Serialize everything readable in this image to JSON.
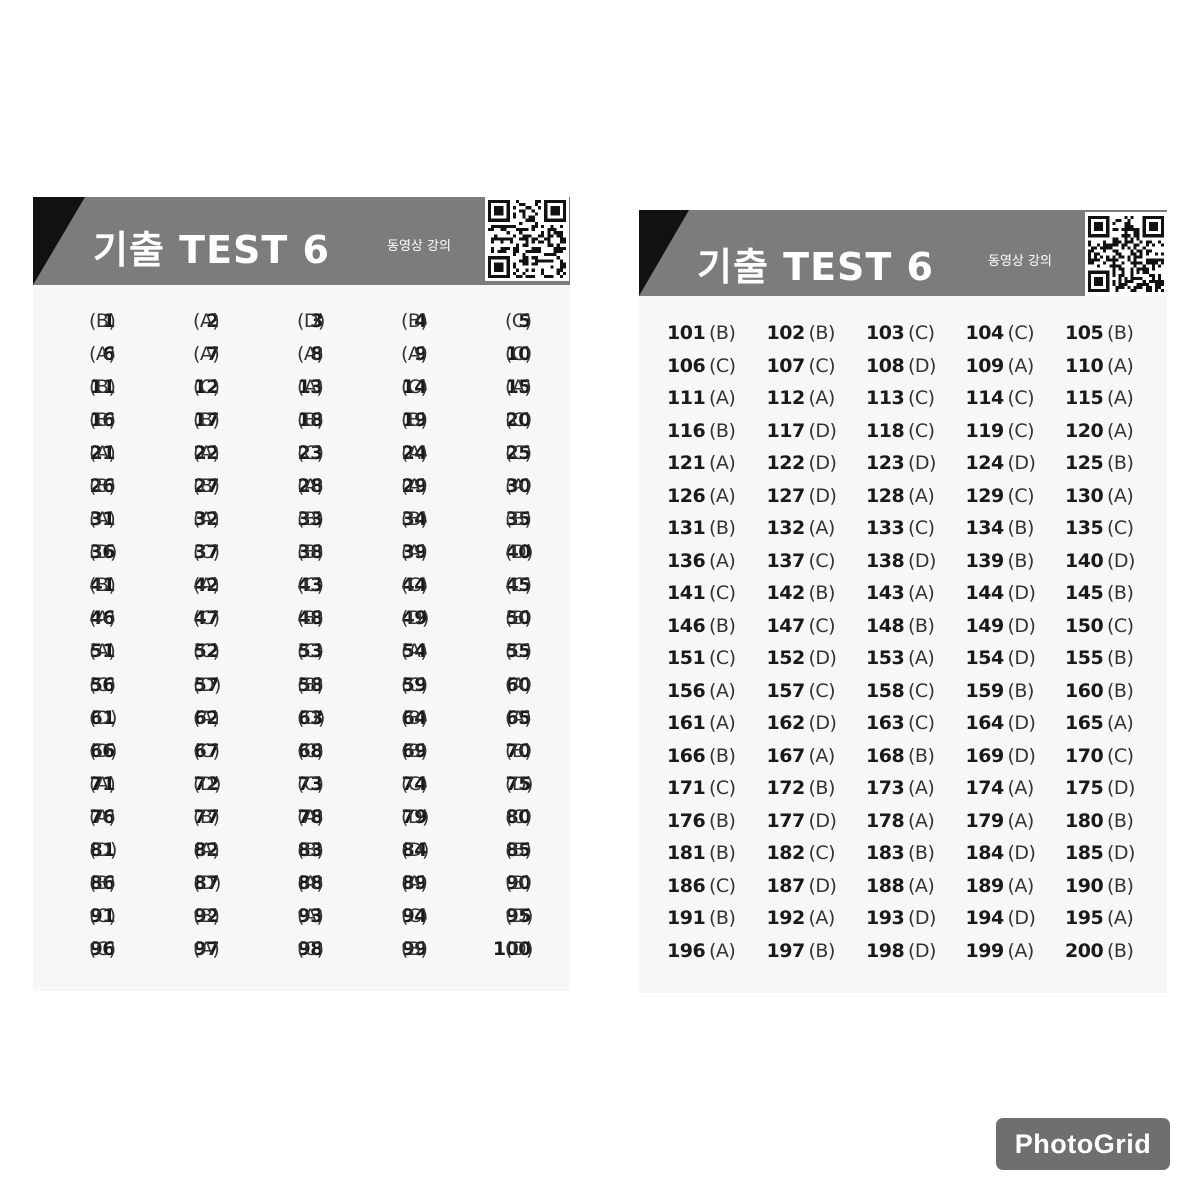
{
  "cards": [
    {
      "title": "기출 TEST 6",
      "video_label": "동영상 강의",
      "answers": [
        [
          "1",
          "(B)"
        ],
        [
          "2",
          "(A)"
        ],
        [
          "3",
          "(D)"
        ],
        [
          "4",
          "(B)"
        ],
        [
          "5",
          "(C)"
        ],
        [
          "6",
          "(A)"
        ],
        [
          "7",
          "(A)"
        ],
        [
          "8",
          "(A)"
        ],
        [
          "9",
          "(A)"
        ],
        [
          "10",
          "(C)"
        ],
        [
          "11",
          "(B)"
        ],
        [
          "12",
          "(C)"
        ],
        [
          "13",
          "(A)"
        ],
        [
          "14",
          "(C)"
        ],
        [
          "15",
          "(A)"
        ],
        [
          "16",
          "(B)"
        ],
        [
          "17",
          "(B)"
        ],
        [
          "18",
          "(B)"
        ],
        [
          "19",
          "(B)"
        ],
        [
          "20",
          "(C)"
        ],
        [
          "21",
          "(A)"
        ],
        [
          "22",
          "(A)"
        ],
        [
          "23",
          "(C)"
        ],
        [
          "24",
          "(A)"
        ],
        [
          "25",
          "(C)"
        ],
        [
          "26",
          "(B)"
        ],
        [
          "27",
          "(B)"
        ],
        [
          "28",
          "(A)"
        ],
        [
          "29",
          "(A)"
        ],
        [
          "30",
          "(A)"
        ],
        [
          "31",
          "(A)"
        ],
        [
          "32",
          "(A)"
        ],
        [
          "33",
          "(B)"
        ],
        [
          "34",
          "(B)"
        ],
        [
          "35",
          "(B)"
        ],
        [
          "36",
          "(D)"
        ],
        [
          "37",
          "(C)"
        ],
        [
          "38",
          "(B)"
        ],
        [
          "39",
          "(A)"
        ],
        [
          "40",
          "(D)"
        ],
        [
          "41",
          "(B)"
        ],
        [
          "42",
          "(A)"
        ],
        [
          "43",
          "(C)"
        ],
        [
          "44",
          "(C)"
        ],
        [
          "45",
          "(C)"
        ],
        [
          "46",
          "(A)"
        ],
        [
          "47",
          "(C)"
        ],
        [
          "48",
          "(B)"
        ],
        [
          "49",
          "(D)"
        ],
        [
          "50",
          "(B)"
        ],
        [
          "51",
          "(A)"
        ],
        [
          "52",
          "(C)"
        ],
        [
          "53",
          "(C)"
        ],
        [
          "54",
          "(A)"
        ],
        [
          "55",
          "(C)"
        ],
        [
          "56",
          "(C)"
        ],
        [
          "57",
          "(D)"
        ],
        [
          "58",
          "(B)"
        ],
        [
          "59",
          "(C)"
        ],
        [
          "60",
          "(A)"
        ],
        [
          "61",
          "(D)"
        ],
        [
          "62",
          "(A)"
        ],
        [
          "63",
          "(D)"
        ],
        [
          "64",
          "(B)"
        ],
        [
          "65",
          "(A)"
        ],
        [
          "66",
          "(D)"
        ],
        [
          "67",
          "(C)"
        ],
        [
          "68",
          "(C)"
        ],
        [
          "69",
          "(B)"
        ],
        [
          "70",
          "(B)"
        ],
        [
          "71",
          "(A)"
        ],
        [
          "72",
          "(D)"
        ],
        [
          "73",
          "(C)"
        ],
        [
          "74",
          "(C)"
        ],
        [
          "75",
          "(D)"
        ],
        [
          "76",
          "(A)"
        ],
        [
          "77",
          "(B)"
        ],
        [
          "78",
          "(A)"
        ],
        [
          "79",
          "(D)"
        ],
        [
          "80",
          "(C)"
        ],
        [
          "81",
          "(D)"
        ],
        [
          "82",
          "(A)"
        ],
        [
          "83",
          "(B)"
        ],
        [
          "84",
          "(D)"
        ],
        [
          "85",
          "(B)"
        ],
        [
          "86",
          "(B)"
        ],
        [
          "87",
          "(D)"
        ],
        [
          "88",
          "(A)"
        ],
        [
          "89",
          "(A)"
        ],
        [
          "90",
          "(B)"
        ],
        [
          "91",
          "(C)"
        ],
        [
          "92",
          "(B)"
        ],
        [
          "93",
          "(A)"
        ],
        [
          "94",
          "(C)"
        ],
        [
          "95",
          "(D)"
        ],
        [
          "96",
          "(C)"
        ],
        [
          "97",
          "(A)"
        ],
        [
          "98",
          "(C)"
        ],
        [
          "99",
          "(B)"
        ],
        [
          "100",
          "(D)"
        ]
      ]
    },
    {
      "title": "기출 TEST 6",
      "video_label": "동영상 강의",
      "answers": [
        [
          "101",
          "(B)"
        ],
        [
          "102",
          "(B)"
        ],
        [
          "103",
          "(C)"
        ],
        [
          "104",
          "(C)"
        ],
        [
          "105",
          "(B)"
        ],
        [
          "106",
          "(C)"
        ],
        [
          "107",
          "(C)"
        ],
        [
          "108",
          "(D)"
        ],
        [
          "109",
          "(A)"
        ],
        [
          "110",
          "(A)"
        ],
        [
          "111",
          "(A)"
        ],
        [
          "112",
          "(A)"
        ],
        [
          "113",
          "(C)"
        ],
        [
          "114",
          "(C)"
        ],
        [
          "115",
          "(A)"
        ],
        [
          "116",
          "(B)"
        ],
        [
          "117",
          "(D)"
        ],
        [
          "118",
          "(C)"
        ],
        [
          "119",
          "(C)"
        ],
        [
          "120",
          "(A)"
        ],
        [
          "121",
          "(A)"
        ],
        [
          "122",
          "(D)"
        ],
        [
          "123",
          "(D)"
        ],
        [
          "124",
          "(D)"
        ],
        [
          "125",
          "(B)"
        ],
        [
          "126",
          "(A)"
        ],
        [
          "127",
          "(D)"
        ],
        [
          "128",
          "(A)"
        ],
        [
          "129",
          "(C)"
        ],
        [
          "130",
          "(A)"
        ],
        [
          "131",
          "(B)"
        ],
        [
          "132",
          "(A)"
        ],
        [
          "133",
          "(C)"
        ],
        [
          "134",
          "(B)"
        ],
        [
          "135",
          "(C)"
        ],
        [
          "136",
          "(A)"
        ],
        [
          "137",
          "(C)"
        ],
        [
          "138",
          "(D)"
        ],
        [
          "139",
          "(B)"
        ],
        [
          "140",
          "(D)"
        ],
        [
          "141",
          "(C)"
        ],
        [
          "142",
          "(B)"
        ],
        [
          "143",
          "(A)"
        ],
        [
          "144",
          "(D)"
        ],
        [
          "145",
          "(B)"
        ],
        [
          "146",
          "(B)"
        ],
        [
          "147",
          "(C)"
        ],
        [
          "148",
          "(B)"
        ],
        [
          "149",
          "(D)"
        ],
        [
          "150",
          "(C)"
        ],
        [
          "151",
          "(C)"
        ],
        [
          "152",
          "(D)"
        ],
        [
          "153",
          "(A)"
        ],
        [
          "154",
          "(D)"
        ],
        [
          "155",
          "(B)"
        ],
        [
          "156",
          "(A)"
        ],
        [
          "157",
          "(C)"
        ],
        [
          "158",
          "(C)"
        ],
        [
          "159",
          "(B)"
        ],
        [
          "160",
          "(B)"
        ],
        [
          "161",
          "(A)"
        ],
        [
          "162",
          "(D)"
        ],
        [
          "163",
          "(C)"
        ],
        [
          "164",
          "(D)"
        ],
        [
          "165",
          "(A)"
        ],
        [
          "166",
          "(B)"
        ],
        [
          "167",
          "(A)"
        ],
        [
          "168",
          "(B)"
        ],
        [
          "169",
          "(D)"
        ],
        [
          "170",
          "(C)"
        ],
        [
          "171",
          "(C)"
        ],
        [
          "172",
          "(B)"
        ],
        [
          "173",
          "(A)"
        ],
        [
          "174",
          "(A)"
        ],
        [
          "175",
          "(D)"
        ],
        [
          "176",
          "(B)"
        ],
        [
          "177",
          "(D)"
        ],
        [
          "178",
          "(A)"
        ],
        [
          "179",
          "(A)"
        ],
        [
          "180",
          "(B)"
        ],
        [
          "181",
          "(B)"
        ],
        [
          "182",
          "(C)"
        ],
        [
          "183",
          "(B)"
        ],
        [
          "184",
          "(D)"
        ],
        [
          "185",
          "(D)"
        ],
        [
          "186",
          "(C)"
        ],
        [
          "187",
          "(D)"
        ],
        [
          "188",
          "(A)"
        ],
        [
          "189",
          "(A)"
        ],
        [
          "190",
          "(B)"
        ],
        [
          "191",
          "(B)"
        ],
        [
          "192",
          "(A)"
        ],
        [
          "193",
          "(D)"
        ],
        [
          "194",
          "(D)"
        ],
        [
          "195",
          "(A)"
        ],
        [
          "196",
          "(A)"
        ],
        [
          "197",
          "(B)"
        ],
        [
          "198",
          "(D)"
        ],
        [
          "199",
          "(A)"
        ],
        [
          "200",
          "(B)"
        ]
      ]
    }
  ],
  "watermark": "PhotoGrid",
  "colors": {
    "header": "#7c7c7c",
    "triangle": "#111111",
    "card_bg": "#f7f7f7",
    "badge": "#6f6f6f"
  }
}
